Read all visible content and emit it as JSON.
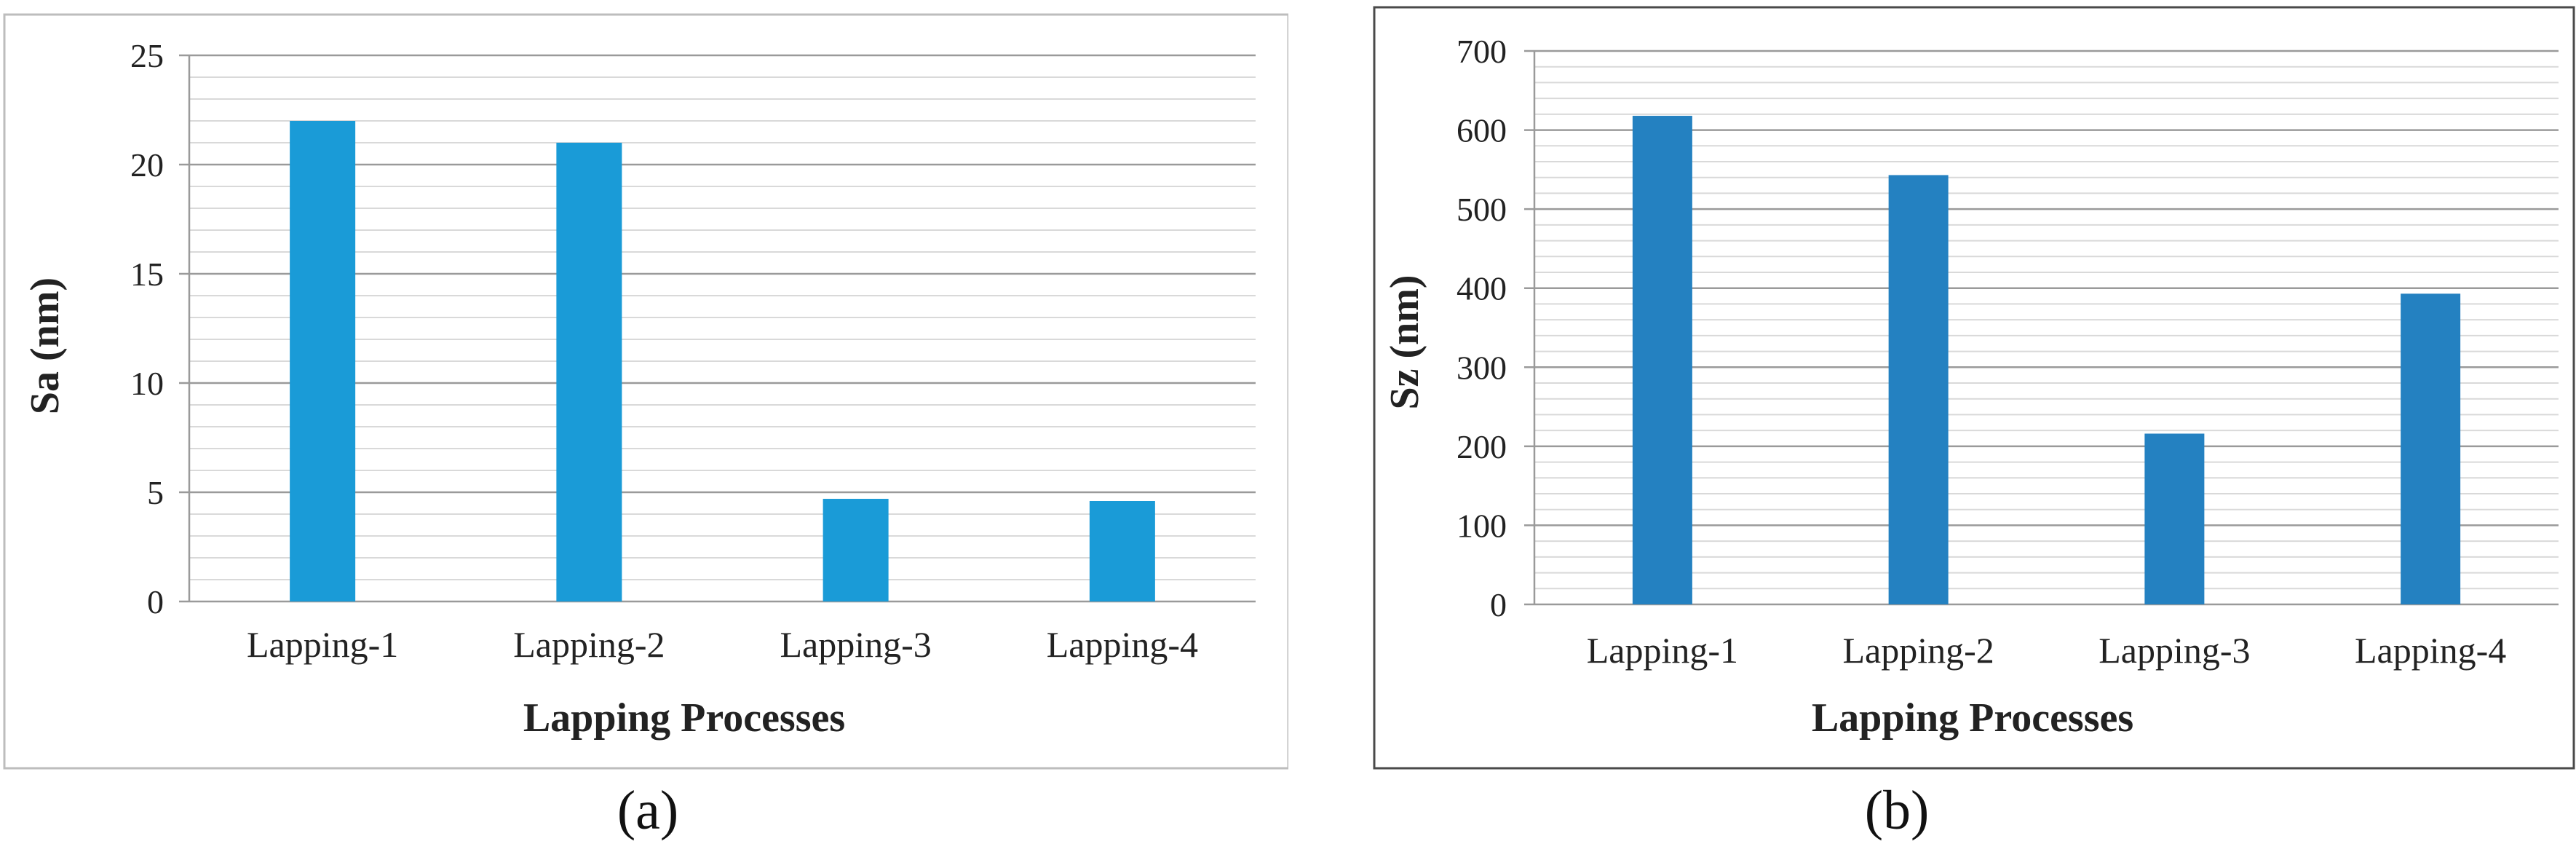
{
  "chart_data": [
    {
      "type": "bar",
      "panel": "a",
      "categories": [
        "Lapping-1",
        "Lapping-2",
        "Lapping-3",
        "Lapping-4"
      ],
      "values": [
        22,
        21,
        4.7,
        4.6
      ],
      "xlabel": "Lapping Processes",
      "ylabel": "Sa (nm)",
      "ylim": [
        0,
        25
      ],
      "yticks": [
        0,
        5,
        10,
        15,
        20,
        25
      ],
      "minor_step": 1,
      "bar_color": "#1a9bd7",
      "grid": true,
      "legend": "none",
      "sublabel": "(a)"
    },
    {
      "type": "bar",
      "panel": "b",
      "categories": [
        "Lapping-1",
        "Lapping-2",
        "Lapping-3",
        "Lapping-4"
      ],
      "values": [
        618,
        543,
        216,
        393
      ],
      "xlabel": "Lapping Processes",
      "ylabel": "Sz (nm)",
      "ylim": [
        0,
        700
      ],
      "yticks": [
        0,
        100,
        200,
        300,
        400,
        500,
        600,
        700
      ],
      "minor_step": 20,
      "bar_color": "#2481c1",
      "grid": true,
      "legend": "none",
      "sublabel": "(b)"
    }
  ]
}
